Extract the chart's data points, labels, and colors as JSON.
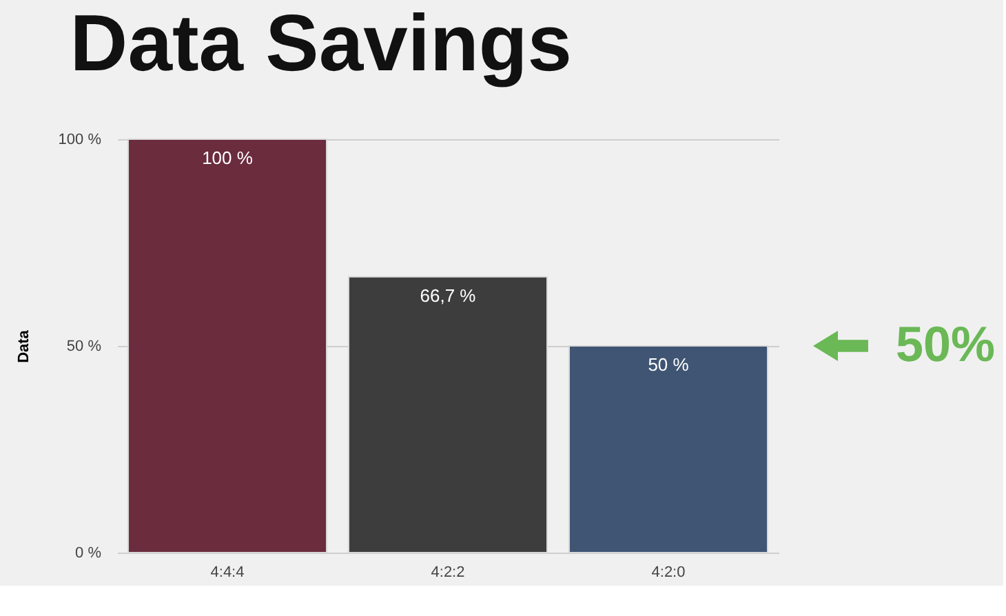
{
  "chart_data": {
    "type": "bar",
    "title": "Data Savings",
    "ylabel": "Data",
    "categories": [
      "4:4:4",
      "4:2:2",
      "4:2:0"
    ],
    "values": [
      100,
      66.7,
      50
    ],
    "colors": [
      "#6b2c3e",
      "#3d3d3d",
      "#3f5573"
    ],
    "value_labels": [
      "100 %",
      "66,7 %",
      "50 %"
    ],
    "ylim": [
      0,
      100
    ],
    "yticks": [
      {
        "value": 0,
        "label": "0 %"
      },
      {
        "value": 50,
        "label": "50 %"
      },
      {
        "value": 100,
        "label": "100 %"
      }
    ],
    "grid": "y",
    "annotations": [
      "50%"
    ]
  }
}
